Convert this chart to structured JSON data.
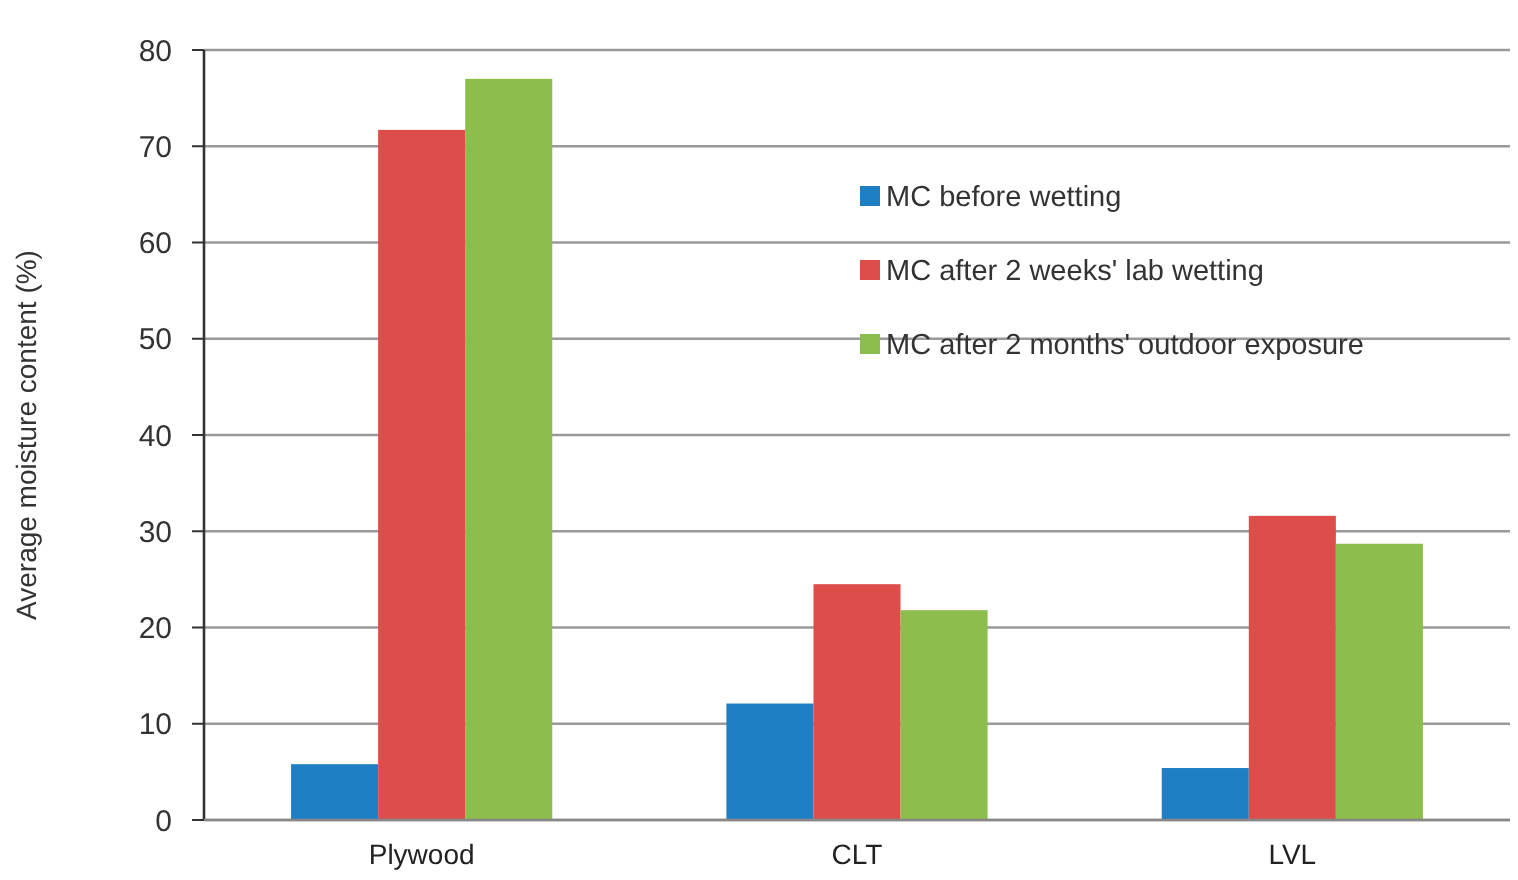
{
  "chart_data": {
    "type": "bar",
    "ylabel": "Average moisture content  (%)",
    "categories": [
      "Plywood",
      "CLT",
      "LVL"
    ],
    "series": [
      {
        "name": "MC before wetting",
        "color": "#1f7fc4",
        "values": [
          5.8,
          12.1,
          5.4
        ]
      },
      {
        "name": "MC after 2 weeks' lab wetting",
        "color": "#dd4e4b",
        "values": [
          71.7,
          24.5,
          31.6
        ]
      },
      {
        "name": "MC after 2 months' outdoor exposure",
        "color": "#8cbd4d",
        "values": [
          77,
          21.8,
          28.7
        ]
      }
    ],
    "ylim": [
      0,
      80
    ],
    "yticks": [
      0,
      10,
      20,
      30,
      40,
      50,
      60,
      70,
      80
    ],
    "grid": "y",
    "legend": "top right"
  }
}
